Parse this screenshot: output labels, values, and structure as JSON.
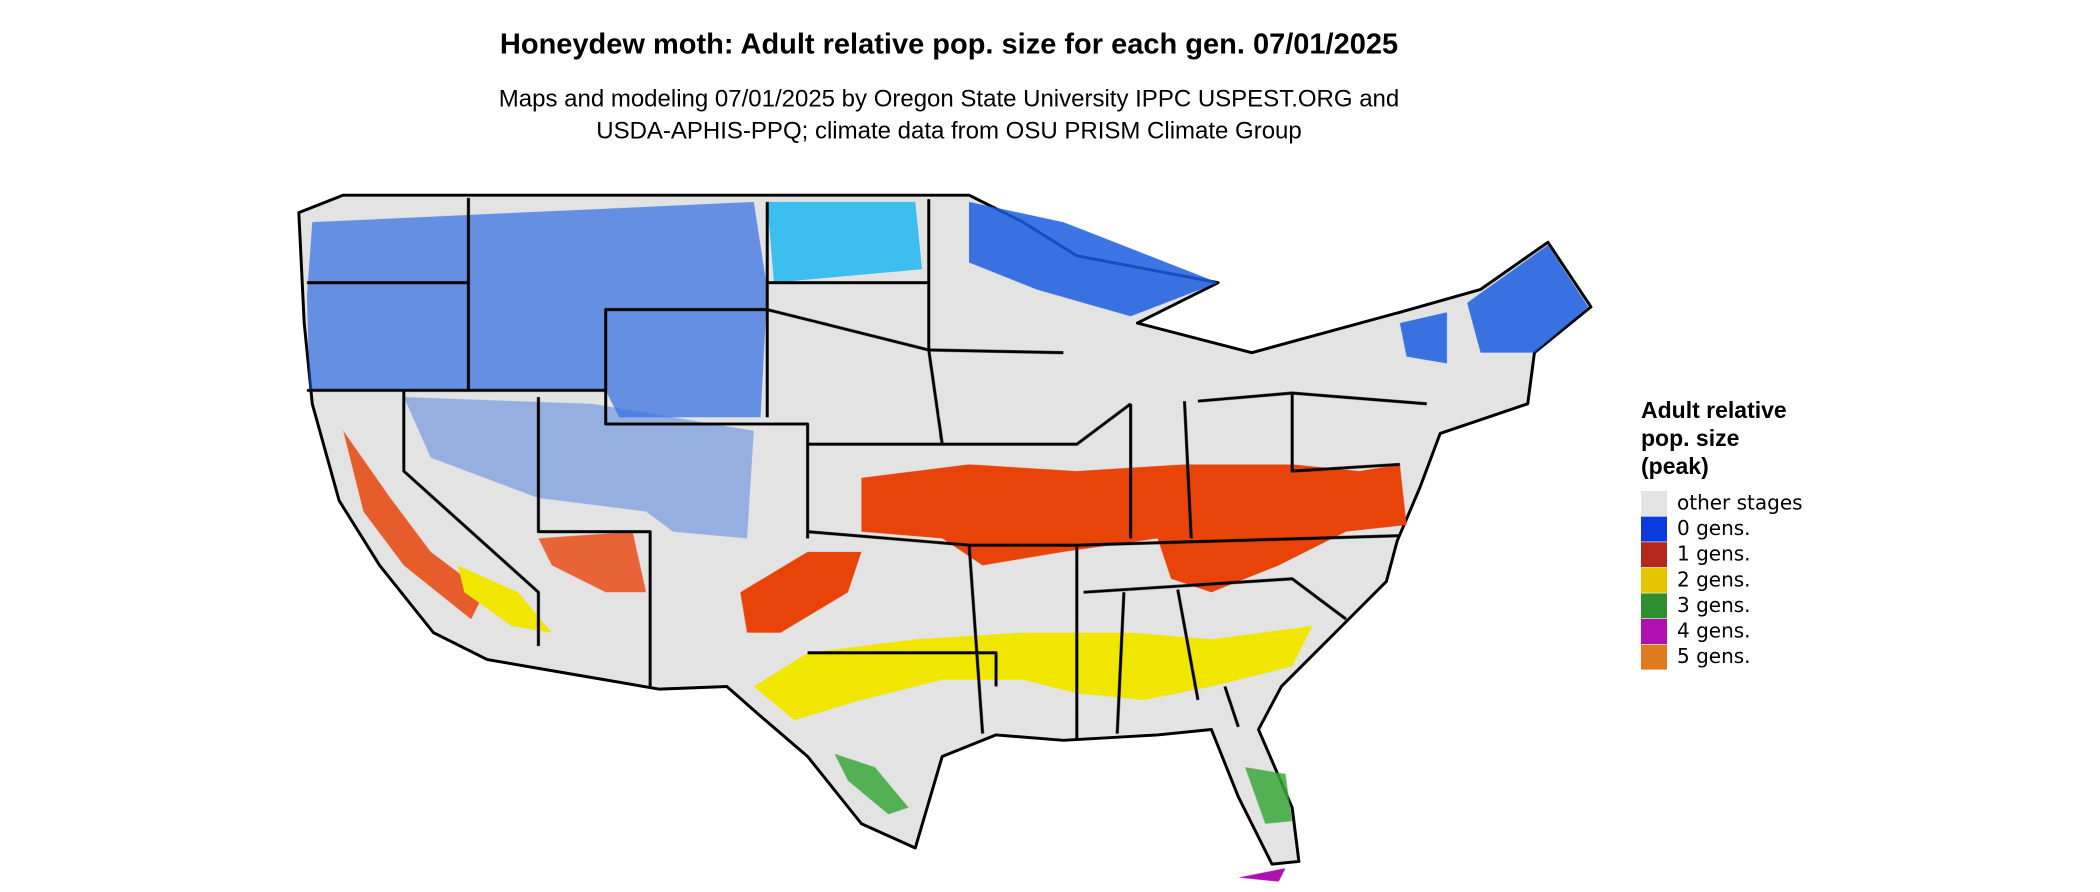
{
  "title": "Honeydew moth: Adult relative pop. size for each gen. 07/01/2025",
  "subtitle": [
    "Maps and modeling 07/01/2025 by Oregon State University IPPC USPEST.ORG and",
    "USDA-APHIS-PPQ; climate data from OSU PRISM Climate Group"
  ],
  "legend": {
    "title": [
      "Adult relative",
      "pop. size",
      "(peak)"
    ],
    "items": [
      {
        "label": "other stages",
        "color": "#e3e3e3"
      },
      {
        "label": "0 gens.",
        "color": "#0b3bdc"
      },
      {
        "label": "1 gens.",
        "color": "#b3281a"
      },
      {
        "label": "2 gens.",
        "color": "#e3c600"
      },
      {
        "label": "3 gens.",
        "color": "#2f8f2f"
      },
      {
        "label": "4 gens.",
        "color": "#b010b0"
      },
      {
        "label": "5 gens.",
        "color": "#e07a1e"
      }
    ]
  }
}
